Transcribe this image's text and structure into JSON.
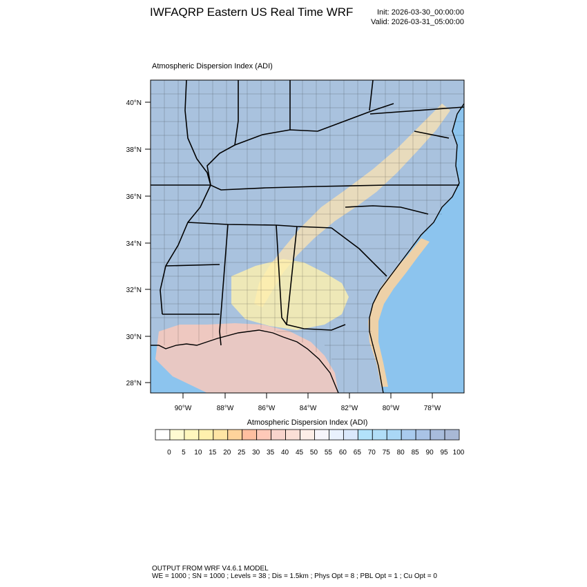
{
  "header": {
    "title": "IWFAQRP Eastern US Real Time WRF",
    "init": "Init: 2026-03-30_00:00:00",
    "valid": "Valid: 2026-03-31_05:00:00"
  },
  "plot": {
    "title": "Atmospheric Dispersion Index   (ADI)",
    "lat_labels": [
      "40°N",
      "38°N",
      "36°N",
      "34°N",
      "32°N",
      "30°N",
      "28°N"
    ],
    "lon_labels": [
      "90°W",
      "88°W",
      "86°W",
      "84°W",
      "82°W",
      "80°W",
      "78°W"
    ],
    "land_color": "#a9c2de",
    "ocean_color": "#8cc4ee"
  },
  "colorbar": {
    "title": "Atmospheric Dispersion Index  (ADI)",
    "labels": [
      "0",
      "5",
      "10",
      "15",
      "20",
      "25",
      "30",
      "35",
      "40",
      "45",
      "50",
      "55",
      "60",
      "65",
      "70",
      "75",
      "80",
      "85",
      "90",
      "95",
      "100"
    ],
    "colors": [
      "#ffffff",
      "#fffbd2",
      "#fff7bd",
      "#fff1ad",
      "#ffe5a4",
      "#ffd39b",
      "#ffbfa0",
      "#ffc9b8",
      "#f8d4cc",
      "#fbdfd6",
      "#fdeee8",
      "#f7f5fb",
      "#e9f1fd",
      "#dae8fb",
      "#b2e2fa",
      "#b1def7",
      "#aad7f5",
      "#a9cbee",
      "#a9c3e6",
      "#a8bcdc",
      "#a8b8d6"
    ]
  },
  "footer": {
    "line1": "OUTPUT FROM WRF V4.6.1 MODEL",
    "line2": "WE = 1000 ; SN = 1000 ; Levels = 38 ; Dis = 1.5km ; Phys Opt = 8 ; PBL Opt = 1 ; Cu Opt = 0"
  }
}
